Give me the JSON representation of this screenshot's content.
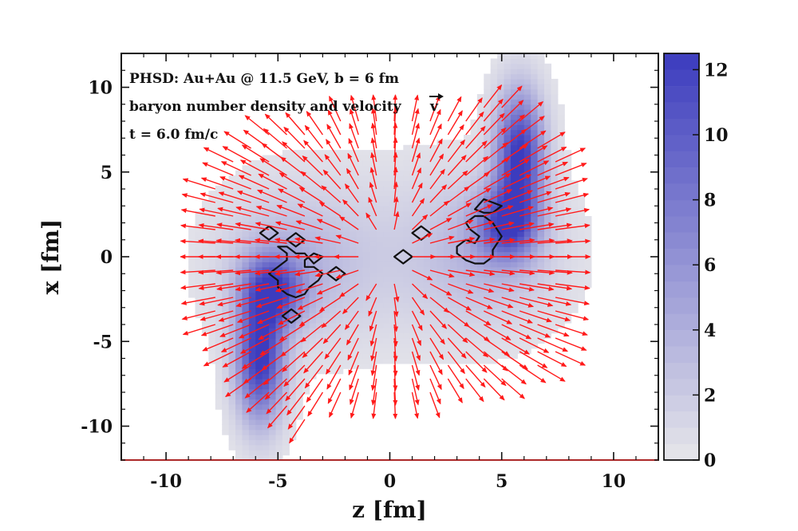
{
  "chart_data": {
    "type": "heatmap",
    "title": "",
    "xlabel": "z  [fm]",
    "ylabel": "x  [fm]",
    "xlim": [
      -12,
      12
    ],
    "ylim": [
      -12,
      12
    ],
    "xticks": [
      "-10",
      "-5",
      "0",
      "5",
      "10"
    ],
    "xtick_values": [
      -10,
      -5,
      0,
      5,
      10
    ],
    "yticks": [
      "10",
      "5",
      "0",
      "-5",
      "-10"
    ],
    "ytick_values": [
      10,
      5,
      0,
      -5,
      -10
    ],
    "annotations": [
      "PHSD:  Au+Au @ 11.5 GeV,  b = 6 fm",
      "baryon number density and velocity",
      "t = 6.0 fm/c"
    ],
    "velocity_symbol": "v",
    "colorbar": {
      "min": 0,
      "max": 12.5,
      "ticks": [
        "12",
        "10",
        "8",
        "6",
        "4",
        "2",
        "0"
      ],
      "tick_values": [
        12,
        10,
        8,
        6,
        4,
        2,
        0
      ],
      "color_low": "#e6e6ea",
      "color_high": "#3c3cbe"
    },
    "density_blobs": [
      {
        "z": 5.8,
        "x": 6.0,
        "sz": 0.75,
        "sx": 2.6,
        "peak": 12.5
      },
      {
        "z": 5.2,
        "x": 2.0,
        "sz": 0.9,
        "sx": 1.4,
        "peak": 9.0
      },
      {
        "z": -5.8,
        "x": -6.0,
        "sz": 0.75,
        "sx": 2.6,
        "peak": 12.5
      },
      {
        "z": -5.2,
        "x": -2.0,
        "sz": 0.9,
        "sx": 1.4,
        "peak": 9.0
      },
      {
        "z": 4.5,
        "x": 0.5,
        "sz": 2.0,
        "sx": 2.8,
        "peak": 3.0
      },
      {
        "z": -4.5,
        "x": -0.5,
        "sz": 2.0,
        "sx": 2.8,
        "peak": 3.0
      },
      {
        "z": 0.0,
        "x": 0.0,
        "sz": 4.2,
        "sx": 3.6,
        "peak": 1.5
      }
    ],
    "contours": [
      [
        [
          -5.4,
          1.8
        ],
        [
          -5.0,
          1.4
        ],
        [
          -5.4,
          1.0
        ],
        [
          -5.8,
          1.4
        ]
      ],
      [
        [
          -4.2,
          1.4
        ],
        [
          -3.8,
          1.0
        ],
        [
          -4.2,
          0.6
        ],
        [
          -4.6,
          1.0
        ]
      ],
      [
        [
          -4.4,
          -3.1
        ],
        [
          -4.0,
          -3.5
        ],
        [
          -4.4,
          -3.9
        ],
        [
          -4.8,
          -3.5
        ]
      ],
      [
        [
          -2.4,
          -0.6
        ],
        [
          -2.0,
          -1.0
        ],
        [
          -2.4,
          -1.4
        ],
        [
          -2.8,
          -1.0
        ]
      ],
      [
        [
          -5.0,
          0.6
        ],
        [
          -4.6,
          0.2
        ],
        [
          -4.6,
          -0.2
        ],
        [
          -5.0,
          -0.6
        ],
        [
          -5.4,
          -1.0
        ],
        [
          -5.0,
          -1.4
        ],
        [
          -5.0,
          -1.8
        ],
        [
          -4.6,
          -2.2
        ],
        [
          -4.2,
          -2.4
        ],
        [
          -3.8,
          -2.2
        ],
        [
          -3.6,
          -1.8
        ],
        [
          -3.2,
          -1.4
        ],
        [
          -3.0,
          -1.0
        ],
        [
          -3.4,
          -0.6
        ],
        [
          -3.8,
          -0.6
        ],
        [
          -3.8,
          -0.2
        ],
        [
          -3.4,
          0.2
        ],
        [
          -3.0,
          0.0
        ],
        [
          -3.4,
          -0.4
        ],
        [
          -3.8,
          0.2
        ],
        [
          -4.2,
          0.2
        ],
        [
          -4.6,
          0.6
        ]
      ],
      [
        [
          0.6,
          0.4
        ],
        [
          1.0,
          0.0
        ],
        [
          0.6,
          -0.4
        ],
        [
          0.2,
          0.0
        ]
      ],
      [
        [
          1.4,
          1.8
        ],
        [
          1.8,
          1.4
        ],
        [
          1.4,
          1.0
        ],
        [
          1.0,
          1.4
        ]
      ],
      [
        [
          4.2,
          3.4
        ],
        [
          4.6,
          3.2
        ],
        [
          5.0,
          3.0
        ],
        [
          4.6,
          2.6
        ],
        [
          4.2,
          2.6
        ],
        [
          3.8,
          2.8
        ]
      ],
      [
        [
          4.2,
          2.4
        ],
        [
          4.6,
          2.0
        ],
        [
          4.8,
          1.6
        ],
        [
          5.0,
          1.2
        ],
        [
          4.8,
          0.8
        ],
        [
          4.6,
          0.4
        ],
        [
          4.6,
          0.0
        ],
        [
          4.2,
          -0.4
        ],
        [
          3.8,
          -0.4
        ],
        [
          3.4,
          -0.2
        ],
        [
          3.0,
          0.2
        ],
        [
          3.0,
          0.6
        ],
        [
          3.4,
          1.0
        ],
        [
          3.8,
          0.8
        ],
        [
          4.0,
          1.2
        ],
        [
          3.6,
          1.6
        ],
        [
          3.4,
          2.0
        ],
        [
          3.8,
          2.4
        ]
      ]
    ]
  }
}
